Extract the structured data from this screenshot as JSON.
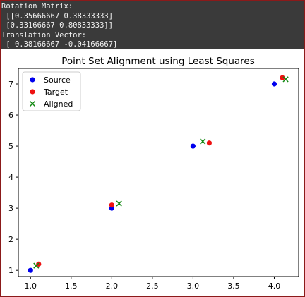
{
  "console": {
    "lines": [
      "Rotation Matrix:",
      " [[0.35666667 0.38333333]",
      " [0.33166667 0.80833333]]",
      "Translation Vector:",
      " [ 0.38166667 -0.04166667]"
    ]
  },
  "chart_data": {
    "type": "scatter",
    "title": "Point Set Alignment using Least Squares",
    "xlabel": "",
    "ylabel": "",
    "xlim": [
      0.85,
      4.3
    ],
    "ylim": [
      0.8,
      7.5
    ],
    "xticks": [
      "1.0",
      "1.5",
      "2.0",
      "2.5",
      "3.0",
      "3.5",
      "4.0"
    ],
    "xtick_values": [
      1.0,
      1.5,
      2.0,
      2.5,
      3.0,
      3.5,
      4.0
    ],
    "yticks": [
      "1",
      "2",
      "3",
      "4",
      "5",
      "6",
      "7"
    ],
    "ytick_values": [
      1,
      2,
      3,
      4,
      5,
      6,
      7
    ],
    "grid": false,
    "legend_position": "top-left",
    "series": [
      {
        "name": "Source",
        "marker": "circle",
        "color": "#0000ee",
        "points": [
          [
            1.0,
            1.0
          ],
          [
            2.0,
            3.0
          ],
          [
            3.0,
            5.0
          ],
          [
            4.0,
            7.0
          ]
        ]
      },
      {
        "name": "Target",
        "marker": "circle",
        "color": "#ee1111",
        "points": [
          [
            1.1,
            1.2
          ],
          [
            2.0,
            3.1
          ],
          [
            3.2,
            5.1
          ],
          [
            4.1,
            7.2
          ]
        ]
      },
      {
        "name": "Aligned",
        "marker": "x",
        "color": "#118811",
        "points": [
          [
            1.07,
            1.15
          ],
          [
            2.09,
            3.15
          ],
          [
            3.12,
            5.15
          ],
          [
            4.14,
            7.15
          ]
        ]
      }
    ]
  }
}
